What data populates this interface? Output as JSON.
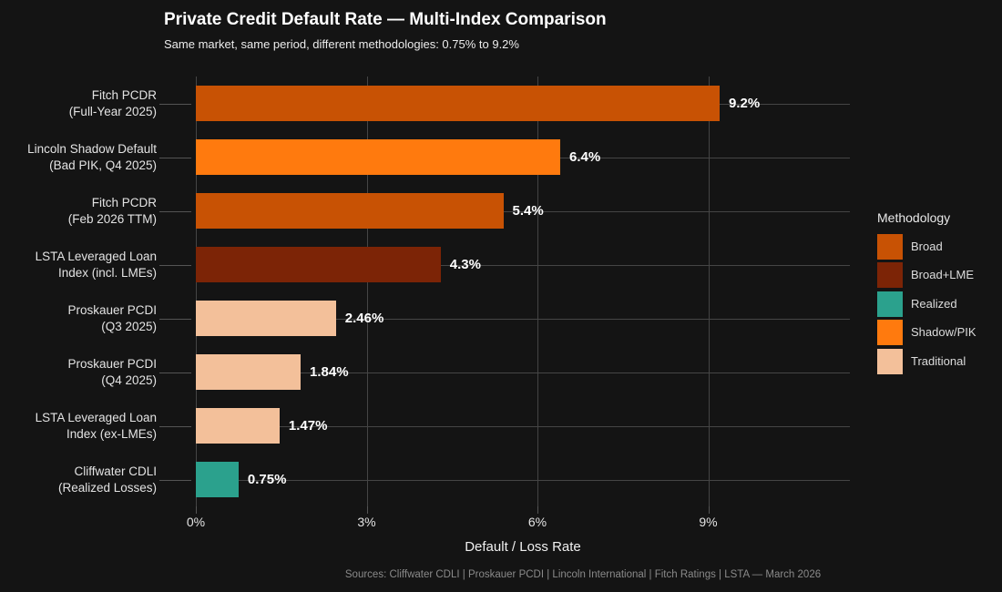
{
  "header": {
    "title": "Private Credit Default Rate — Multi-Index Comparison",
    "subtitle": "Same market, same period, different methodologies: 0.75% to 9.2%"
  },
  "chart_data": {
    "type": "bar",
    "orientation": "horizontal",
    "title": "Private Credit Default Rate — Multi-Index Comparison",
    "subtitle": "Same market, same period, different methodologies: 0.75% to 9.2%",
    "xlabel": "Default / Loss Rate",
    "ylabel": "",
    "xlim": [
      0,
      11.5
    ],
    "grid": true,
    "x_tick_labels": [
      "0%",
      "3%",
      "6%",
      "9%"
    ],
    "x_tick_values": [
      0,
      3,
      6,
      9
    ],
    "categories": [
      [
        "Fitch PCDR",
        "(Full-Year 2025)"
      ],
      [
        "Lincoln Shadow Default",
        "(Bad PIK, Q4 2025)"
      ],
      [
        "Fitch PCDR",
        "(Feb 2026 TTM)"
      ],
      [
        "LSTA Leveraged Loan",
        "Index (incl. LMEs)"
      ],
      [
        "Proskauer PCDI",
        "(Q3 2025)"
      ],
      [
        "Proskauer PCDI",
        "(Q4 2025)"
      ],
      [
        "LSTA Leveraged Loan",
        "Index (ex-LMEs)"
      ],
      [
        "Cliffwater CDLI",
        "(Realized Losses)"
      ]
    ],
    "values": [
      9.2,
      6.4,
      5.4,
      4.3,
      2.46,
      1.84,
      1.47,
      0.75
    ],
    "value_labels": [
      "9.2%",
      "6.4%",
      "5.4%",
      "4.3%",
      "2.46%",
      "1.84%",
      "1.47%",
      "0.75%"
    ],
    "methodologies": [
      "Broad",
      "Shadow/PIK",
      "Broad",
      "Broad+LME",
      "Traditional",
      "Traditional",
      "Traditional",
      "Realized"
    ],
    "colors": {
      "Broad": "#c85204",
      "Broad+LME": "#7c2406",
      "Realized": "#2ba18d",
      "Shadow/PIK": "#ff7a0e",
      "Traditional": "#f3c09a"
    },
    "legend": {
      "title": "Methodology",
      "position": "right",
      "entries": [
        {
          "label": "Broad",
          "color": "#c85204"
        },
        {
          "label": "Broad+LME",
          "color": "#7c2406"
        },
        {
          "label": "Realized",
          "color": "#2ba18d"
        },
        {
          "label": "Shadow/PIK",
          "color": "#ff7a0e"
        },
        {
          "label": "Traditional",
          "color": "#f3c09a"
        }
      ]
    }
  },
  "footer": {
    "sources": "Sources: Cliffwater CDLI | Proskauer PCDI | Lincoln International | Fitch Ratings | LSTA — March 2026"
  }
}
